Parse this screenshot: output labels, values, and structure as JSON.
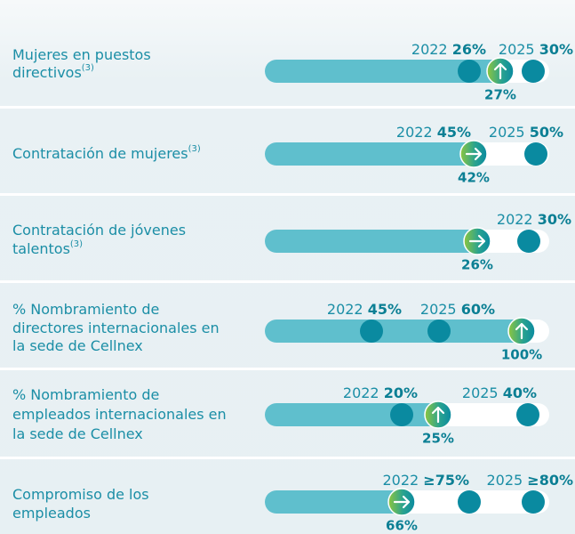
{
  "chart_data": {
    "type": "progress",
    "rows": [
      {
        "lines": [
          "Mujeres en puestos",
          "directivos"
        ],
        "note": "(3)",
        "targets": [
          {
            "year": "2022",
            "value": 26,
            "value_label": "26%"
          },
          {
            "year": "2025",
            "value": 30,
            "value_label": "30%"
          }
        ],
        "current": {
          "value": 27,
          "value_label": "27%"
        }
      },
      {
        "lines": [
          "Contratación de mujeres"
        ],
        "note": "(3)",
        "targets": [
          {
            "year": "2022",
            "value": 45,
            "value_label": "45%"
          },
          {
            "year": "2025",
            "value": 50,
            "value_label": "50%"
          }
        ],
        "current": {
          "value": 42,
          "value_label": "42%"
        }
      },
      {
        "lines": [
          "Contratación de jóvenes",
          "talentos"
        ],
        "note": "(3)",
        "targets": [
          {
            "year": "2022",
            "value": 30,
            "value_label": "30%"
          }
        ],
        "current": {
          "value": 26,
          "value_label": "26%"
        }
      },
      {
        "lines": [
          "% Nombramiento de",
          "directores internacionales en",
          "la sede de Cellnex"
        ],
        "targets": [
          {
            "year": "2022",
            "value": 45,
            "value_label": "45%"
          },
          {
            "year": "2025",
            "value": 60,
            "value_label": "60%"
          }
        ],
        "current": {
          "value": 100,
          "value_label": "100%"
        }
      },
      {
        "lines": [
          "% Nombramiento de",
          "empleados internacionales en",
          "la sede de Cellnex"
        ],
        "targets": [
          {
            "year": "2022",
            "value": 20,
            "value_label": "20%"
          },
          {
            "year": "2025",
            "value": 40,
            "value_label": "40%"
          }
        ],
        "current": {
          "value": 25,
          "value_label": "25%"
        }
      },
      {
        "lines": [
          "Compromiso de los",
          "empleados"
        ],
        "targets": [
          {
            "year": "2022",
            "value": 75,
            "value_label": "≥75%"
          },
          {
            "year": "2025",
            "value": 80,
            "value_label": "≥80%"
          }
        ],
        "current": {
          "value": 66,
          "value_label": "66%"
        }
      }
    ]
  }
}
